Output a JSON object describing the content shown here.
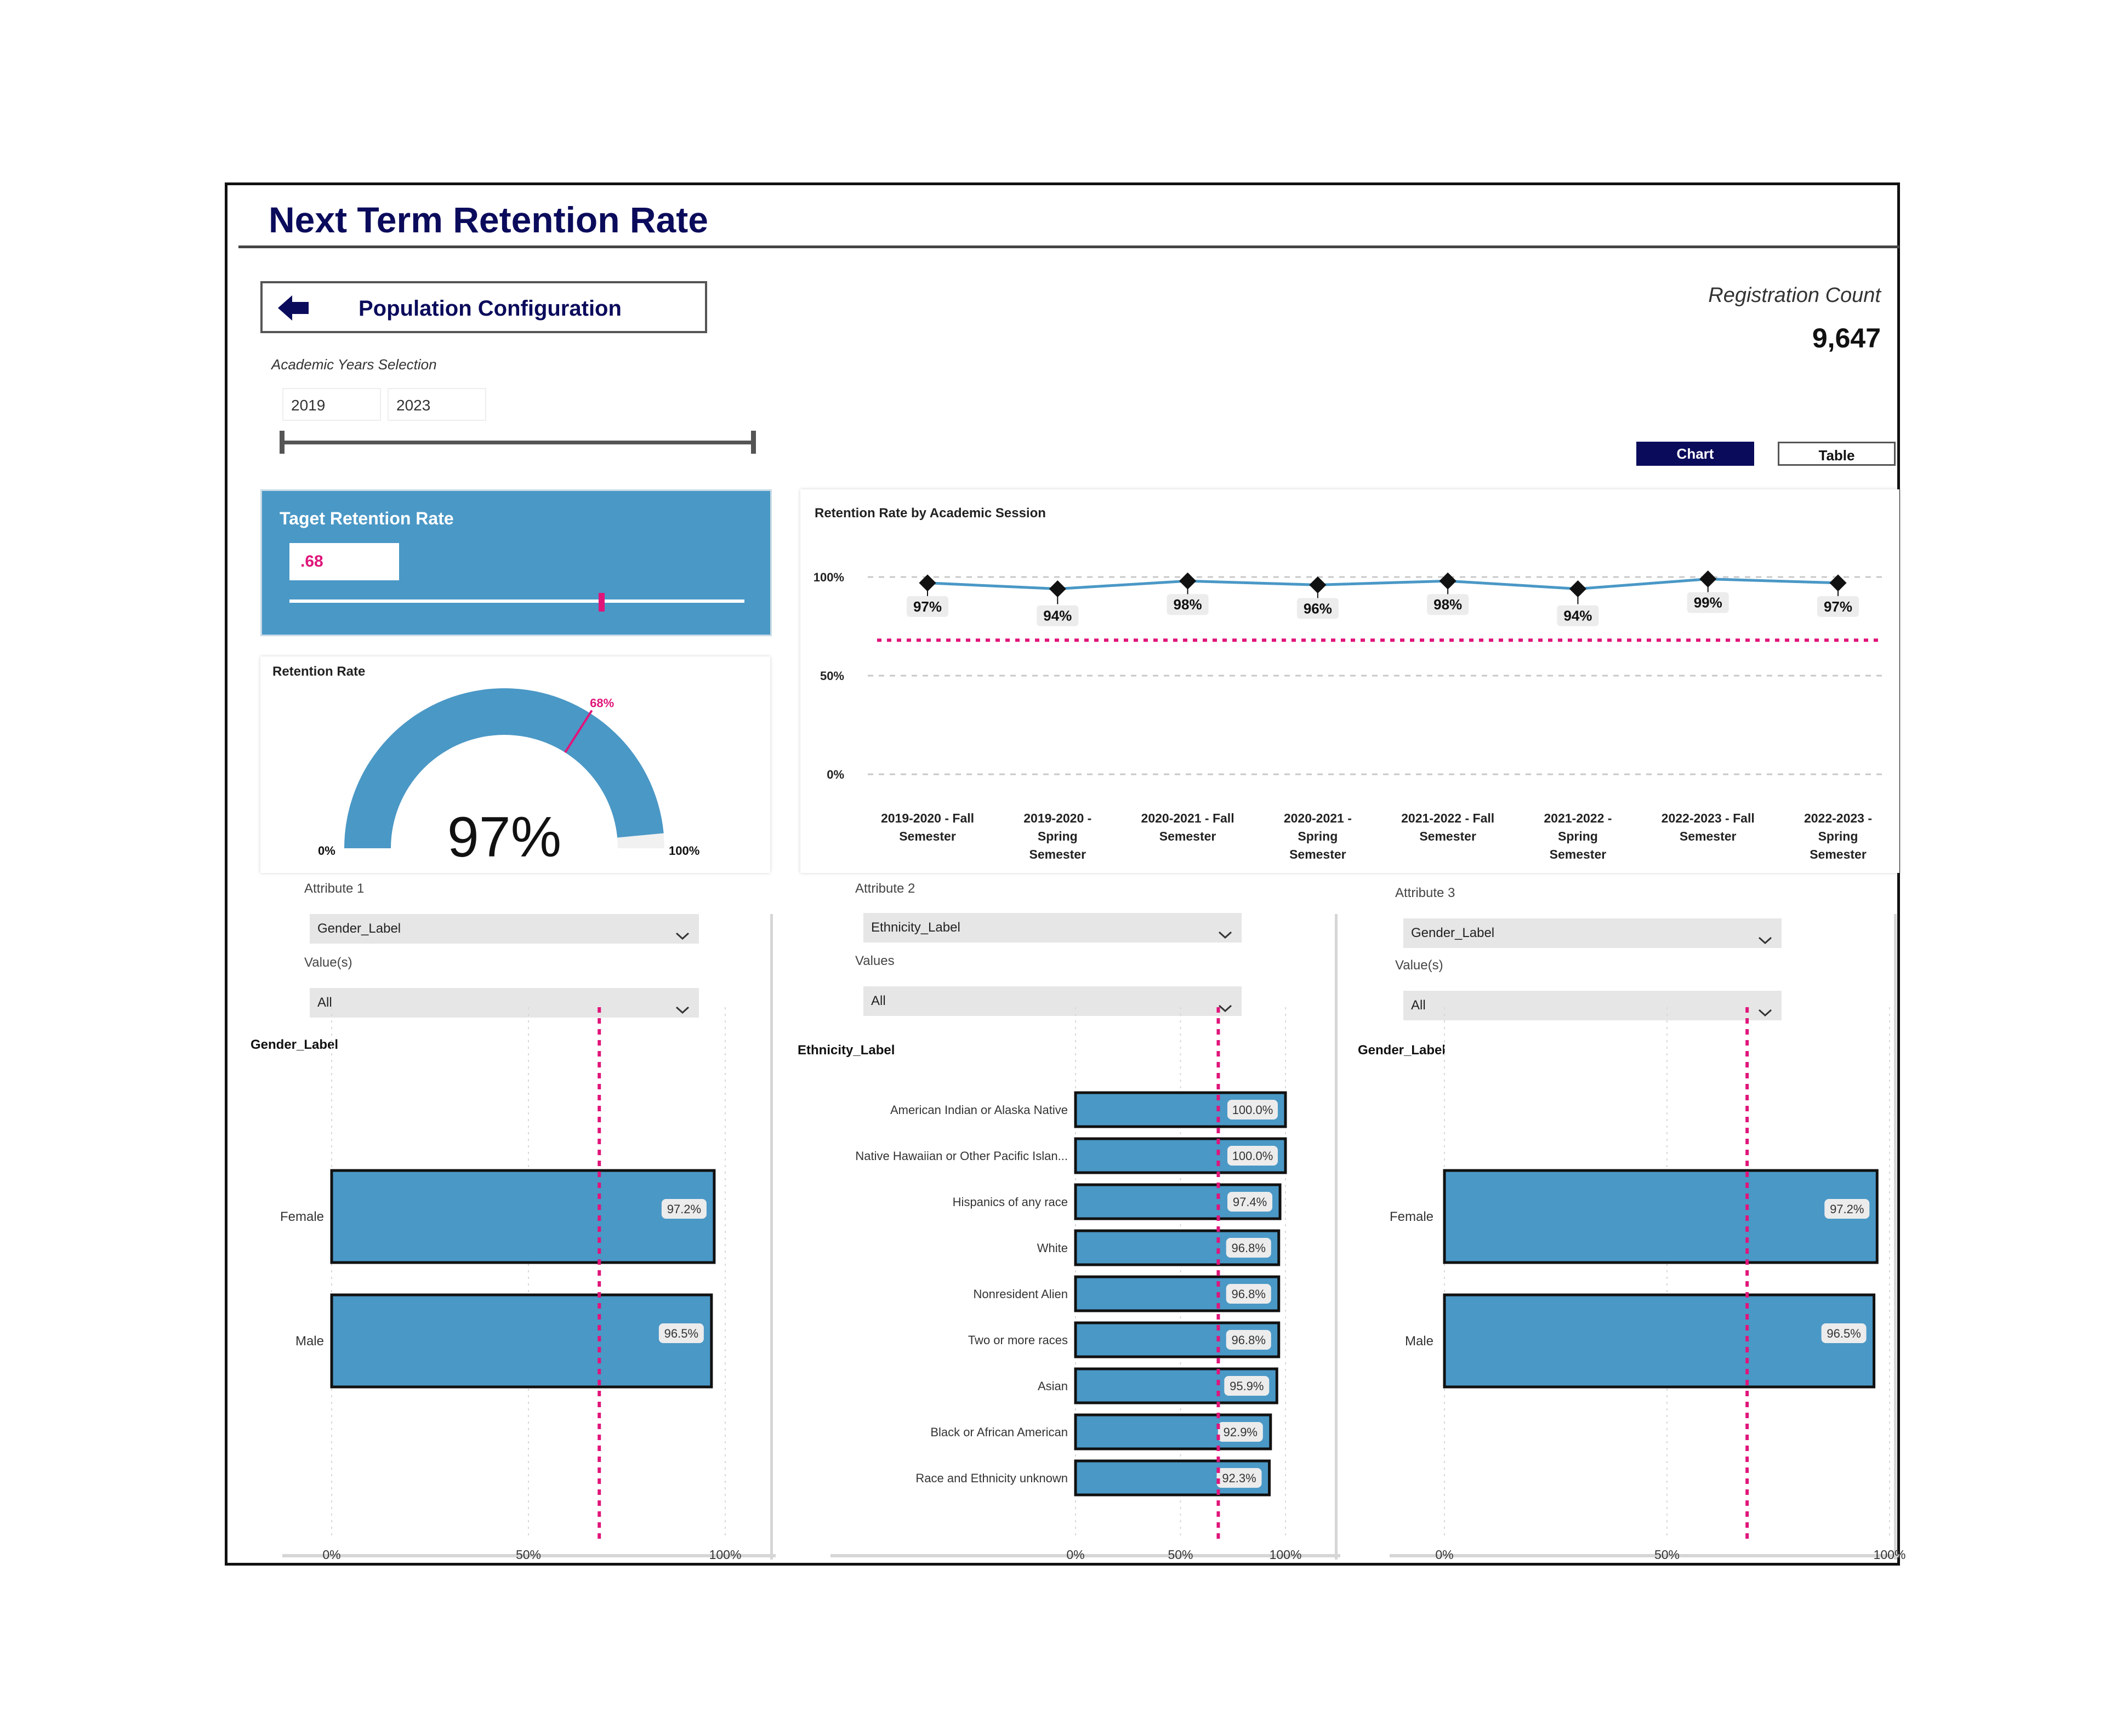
{
  "header": {
    "title": "Next Term Retention Rate"
  },
  "nav": {
    "population_config_label": "Population Configuration",
    "back_icon": "arrow-left-icon"
  },
  "years": {
    "label": "Academic Years Selection",
    "start": "2019",
    "end": "2023"
  },
  "registration": {
    "label": "Registration Count",
    "value": "9,647"
  },
  "view_toggle": {
    "chart_label": "Chart",
    "table_label": "Table",
    "active": "Chart"
  },
  "target": {
    "title": "Taget Retention Rate",
    "value": ".68",
    "level": 0.68
  },
  "gauge": {
    "title": "Retention Rate",
    "value_label": "97%",
    "value": 97,
    "target_label": "68%",
    "target": 68,
    "min_label": "0%",
    "max_label": "100%"
  },
  "colors": {
    "navy": "#0b0b5c",
    "bar": "#4a98c6",
    "target": "#e0157a",
    "line": "#4a98c6"
  },
  "line_chart": {
    "title": "Retention Rate by Academic Session",
    "y_ticks": [
      "100%",
      "50%",
      "0%"
    ],
    "categories": [
      "2019-2020 - Fall Semester",
      "2019-2020 - Spring Semester",
      "2020-2021 - Fall Semester",
      "2020-2021 - Spring Semester",
      "2021-2022 - Fall Semester",
      "2021-2022 - Spring Semester",
      "2022-2023 - Fall Semester",
      "2022-2023 - Spring Semester"
    ],
    "category_lines": [
      [
        "2019-2020 - Fall",
        "Semester"
      ],
      [
        "2019-2020 -",
        "Spring",
        "Semester"
      ],
      [
        "2020-2021 - Fall",
        "Semester"
      ],
      [
        "2020-2021 -",
        "Spring",
        "Semester"
      ],
      [
        "2021-2022 - Fall",
        "Semester"
      ],
      [
        "2021-2022 -",
        "Spring",
        "Semester"
      ],
      [
        "2022-2023 - Fall",
        "Semester"
      ],
      [
        "2022-2023 -",
        "Spring",
        "Semester"
      ]
    ],
    "values": [
      97,
      94,
      98,
      96,
      98,
      94,
      99,
      97
    ],
    "labels": [
      "97%",
      "94%",
      "98%",
      "96%",
      "98%",
      "94%",
      "99%",
      "97%"
    ],
    "target": 68
  },
  "chart_data": [
    {
      "type": "line",
      "title": "Retention Rate by Academic Session",
      "categories": [
        "2019-2020 - Fall Semester",
        "2019-2020 - Spring Semester",
        "2020-2021 - Fall Semester",
        "2020-2021 - Spring Semester",
        "2021-2022 - Fall Semester",
        "2021-2022 - Spring Semester",
        "2022-2023 - Fall Semester",
        "2022-2023 - Spring Semester"
      ],
      "values": [
        97,
        94,
        98,
        96,
        98,
        94,
        99,
        97
      ],
      "ylim": [
        0,
        100
      ],
      "reference_line": 68,
      "grid": true
    },
    {
      "type": "bar",
      "title": "Gender_Label",
      "categories": [
        "Female",
        "Male"
      ],
      "values": [
        97.2,
        96.5
      ],
      "ylim": [
        0,
        100
      ],
      "reference_line": 68
    },
    {
      "type": "bar",
      "title": "Ethnicity_Label",
      "categories": [
        "American Indian or Alaska Native",
        "Native Hawaiian or Other Pacific Islan...",
        "Hispanics of any race",
        "White",
        "Nonresident Alien",
        "Two or more races",
        "Asian",
        "Black or African American",
        "Race and Ethnicity unknown"
      ],
      "values": [
        100.0,
        100.0,
        97.4,
        96.8,
        96.8,
        96.8,
        95.9,
        92.9,
        92.3
      ],
      "ylim": [
        0,
        100
      ],
      "reference_line": 68
    },
    {
      "type": "bar",
      "title": "Gender_Label",
      "categories": [
        "Female",
        "Male"
      ],
      "values": [
        97.2,
        96.5
      ],
      "ylim": [
        0,
        100
      ],
      "reference_line": 68
    }
  ],
  "panels": [
    {
      "attr_label": "Attribute 1",
      "attr_value": "Gender_Label",
      "values_label": "Value(s)",
      "values_value": "All",
      "chart_title": "Gender_Label",
      "categories": [
        "Female",
        "Male"
      ],
      "values": [
        97.2,
        96.5
      ],
      "labels": [
        "97.2%",
        "96.5%"
      ],
      "x_ticks": [
        "0%",
        "50%",
        "100%"
      ]
    },
    {
      "attr_label": "Attribute 2",
      "attr_value": "Ethnicity_Label",
      "values_label": "Values",
      "values_value": "All",
      "chart_title": "Ethnicity_Label",
      "categories": [
        "American Indian or Alaska Native",
        "Native Hawaiian or Other Pacific Islan...",
        "Hispanics of any race",
        "White",
        "Nonresident Alien",
        "Two or more races",
        "Asian",
        "Black or African American",
        "Race and Ethnicity unknown"
      ],
      "values": [
        100.0,
        100.0,
        97.4,
        96.8,
        96.8,
        96.8,
        95.9,
        92.9,
        92.3
      ],
      "labels": [
        "100.0%",
        "100.0%",
        "97.4%",
        "96.8%",
        "96.8%",
        "96.8%",
        "95.9%",
        "92.9%",
        "92.3%"
      ],
      "x_ticks": [
        "0%",
        "50%",
        "100%"
      ]
    },
    {
      "attr_label": "Attribute 3",
      "attr_value": "Gender_Label",
      "values_label": "Value(s)",
      "values_value": "All",
      "chart_title": "Gender_Label",
      "categories": [
        "Female",
        "Male"
      ],
      "values": [
        97.2,
        96.5
      ],
      "labels": [
        "97.2%",
        "96.5%"
      ],
      "x_ticks": [
        "0%",
        "50%",
        "100%"
      ]
    }
  ]
}
